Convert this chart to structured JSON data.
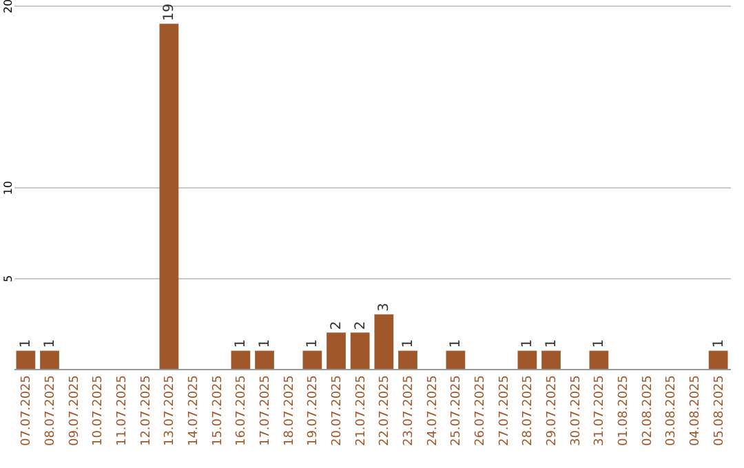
{
  "chart_data": {
    "type": "bar",
    "categories": [
      "07.07.2025",
      "08.07.2025",
      "09.07.2025",
      "10.07.2025",
      "11.07.2025",
      "12.07.2025",
      "13.07.2025",
      "14.07.2025",
      "15.07.2025",
      "16.07.2025",
      "17.07.2025",
      "18.07.2025",
      "19.07.2025",
      "20.07.2025",
      "21.07.2025",
      "22.07.2025",
      "23.07.2025",
      "24.07.2025",
      "25.07.2025",
      "26.07.2025",
      "27.07.2025",
      "28.07.2025",
      "29.07.2025",
      "30.07.2025",
      "31.07.2025",
      "01.08.2025",
      "02.08.2025",
      "03.08.2025",
      "04.08.2025",
      "05.08.2025"
    ],
    "values": [
      1,
      1,
      0,
      0,
      0,
      0,
      19,
      0,
      0,
      1,
      1,
      0,
      1,
      2,
      2,
      3,
      1,
      0,
      1,
      0,
      0,
      1,
      1,
      0,
      1,
      0,
      0,
      0,
      0,
      1
    ],
    "value_labels": [
      "1",
      "1",
      null,
      null,
      null,
      null,
      "19",
      null,
      null,
      "1",
      "1",
      null,
      "1",
      "2",
      "2",
      "3",
      "1",
      null,
      "1",
      null,
      null,
      "1",
      "1",
      null,
      "1",
      null,
      null,
      null,
      null,
      "1"
    ],
    "color": "#a0572a",
    "ylim": [
      0,
      20
    ],
    "yticks": [
      5,
      10,
      20
    ],
    "grid": "y"
  }
}
